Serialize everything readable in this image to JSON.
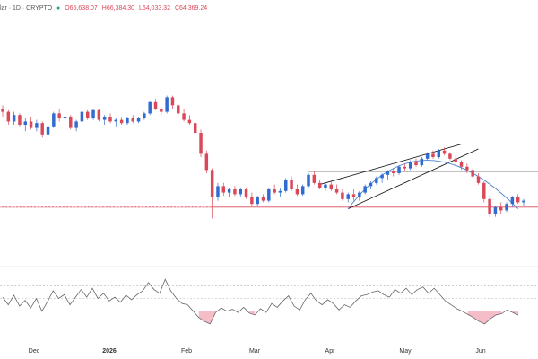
{
  "header": {
    "symbol": "lar · 1D · CRYPTO",
    "open": "O65,638.07",
    "high": "H66,384.30",
    "low": "L64,033.32",
    "close": "C64,369.24"
  },
  "colors": {
    "up": "#2f6bd0",
    "down": "#d9495a",
    "trendline": "#1a1a1a",
    "arc": "#4a7fd0",
    "support": "#d9495a",
    "resistance": "#9a9a9a",
    "rsi": "#666666"
  },
  "chart_data": {
    "type": "candlestick",
    "x_labels": [
      "Dec",
      "2026",
      "Feb",
      "Mar",
      "Apr",
      "May",
      "Jun"
    ],
    "candles": [
      [
        0.8,
        0.82,
        0.75,
        0.78
      ],
      [
        0.78,
        0.79,
        0.7,
        0.72
      ],
      [
        0.72,
        0.78,
        0.7,
        0.76
      ],
      [
        0.76,
        0.77,
        0.69,
        0.7
      ],
      [
        0.7,
        0.74,
        0.66,
        0.72
      ],
      [
        0.72,
        0.75,
        0.67,
        0.68
      ],
      [
        0.68,
        0.73,
        0.66,
        0.71
      ],
      [
        0.71,
        0.72,
        0.62,
        0.64
      ],
      [
        0.64,
        0.7,
        0.63,
        0.69
      ],
      [
        0.69,
        0.78,
        0.68,
        0.77
      ],
      [
        0.77,
        0.8,
        0.72,
        0.74
      ],
      [
        0.74,
        0.76,
        0.7,
        0.75
      ],
      [
        0.75,
        0.76,
        0.67,
        0.68
      ],
      [
        0.68,
        0.73,
        0.66,
        0.72
      ],
      [
        0.72,
        0.79,
        0.71,
        0.78
      ],
      [
        0.78,
        0.79,
        0.73,
        0.74
      ],
      [
        0.74,
        0.8,
        0.73,
        0.79
      ],
      [
        0.79,
        0.8,
        0.72,
        0.73
      ],
      [
        0.73,
        0.76,
        0.7,
        0.75
      ],
      [
        0.75,
        0.77,
        0.71,
        0.72
      ],
      [
        0.72,
        0.74,
        0.69,
        0.73
      ],
      [
        0.73,
        0.75,
        0.7,
        0.71
      ],
      [
        0.71,
        0.75,
        0.7,
        0.74
      ],
      [
        0.74,
        0.76,
        0.71,
        0.72
      ],
      [
        0.72,
        0.75,
        0.71,
        0.74
      ],
      [
        0.74,
        0.78,
        0.73,
        0.77
      ],
      [
        0.77,
        0.85,
        0.76,
        0.84
      ],
      [
        0.84,
        0.86,
        0.79,
        0.8
      ],
      [
        0.8,
        0.81,
        0.76,
        0.78
      ],
      [
        0.78,
        0.88,
        0.77,
        0.87
      ],
      [
        0.87,
        0.88,
        0.8,
        0.82
      ],
      [
        0.82,
        0.83,
        0.76,
        0.77
      ],
      [
        0.77,
        0.8,
        0.72,
        0.73
      ],
      [
        0.73,
        0.76,
        0.7,
        0.71
      ],
      [
        0.71,
        0.72,
        0.64,
        0.65
      ],
      [
        0.65,
        0.67,
        0.5,
        0.52
      ],
      [
        0.52,
        0.54,
        0.4,
        0.42
      ],
      [
        0.42,
        0.43,
        0.12,
        0.25
      ],
      [
        0.25,
        0.34,
        0.23,
        0.32
      ],
      [
        0.32,
        0.34,
        0.26,
        0.28
      ],
      [
        0.28,
        0.31,
        0.25,
        0.3
      ],
      [
        0.3,
        0.32,
        0.26,
        0.27
      ],
      [
        0.27,
        0.31,
        0.25,
        0.3
      ],
      [
        0.3,
        0.31,
        0.24,
        0.25
      ],
      [
        0.25,
        0.28,
        0.2,
        0.21
      ],
      [
        0.21,
        0.26,
        0.2,
        0.25
      ],
      [
        0.25,
        0.27,
        0.22,
        0.23
      ],
      [
        0.23,
        0.31,
        0.22,
        0.3
      ],
      [
        0.3,
        0.33,
        0.27,
        0.28
      ],
      [
        0.28,
        0.31,
        0.25,
        0.29
      ],
      [
        0.29,
        0.37,
        0.28,
        0.36
      ],
      [
        0.36,
        0.38,
        0.29,
        0.3
      ],
      [
        0.3,
        0.33,
        0.26,
        0.27
      ],
      [
        0.27,
        0.33,
        0.26,
        0.32
      ],
      [
        0.32,
        0.4,
        0.31,
        0.39
      ],
      [
        0.39,
        0.41,
        0.33,
        0.34
      ],
      [
        0.34,
        0.36,
        0.3,
        0.31
      ],
      [
        0.31,
        0.34,
        0.29,
        0.33
      ],
      [
        0.33,
        0.35,
        0.29,
        0.3
      ],
      [
        0.3,
        0.33,
        0.27,
        0.28
      ],
      [
        0.28,
        0.3,
        0.23,
        0.24
      ],
      [
        0.24,
        0.28,
        0.22,
        0.27
      ],
      [
        0.27,
        0.3,
        0.23,
        0.25
      ],
      [
        0.25,
        0.29,
        0.23,
        0.28
      ],
      [
        0.28,
        0.33,
        0.27,
        0.32
      ],
      [
        0.32,
        0.35,
        0.3,
        0.34
      ],
      [
        0.34,
        0.38,
        0.33,
        0.37
      ],
      [
        0.37,
        0.4,
        0.34,
        0.39
      ],
      [
        0.39,
        0.42,
        0.36,
        0.41
      ],
      [
        0.41,
        0.43,
        0.38,
        0.4
      ],
      [
        0.4,
        0.45,
        0.39,
        0.44
      ],
      [
        0.44,
        0.46,
        0.41,
        0.43
      ],
      [
        0.43,
        0.48,
        0.42,
        0.47
      ],
      [
        0.47,
        0.49,
        0.44,
        0.45
      ],
      [
        0.45,
        0.5,
        0.44,
        0.49
      ],
      [
        0.49,
        0.53,
        0.48,
        0.52
      ],
      [
        0.52,
        0.54,
        0.49,
        0.5
      ],
      [
        0.5,
        0.55,
        0.49,
        0.54
      ],
      [
        0.54,
        0.56,
        0.51,
        0.52
      ],
      [
        0.52,
        0.53,
        0.48,
        0.49
      ],
      [
        0.49,
        0.51,
        0.45,
        0.47
      ],
      [
        0.47,
        0.48,
        0.42,
        0.44
      ],
      [
        0.44,
        0.46,
        0.4,
        0.42
      ],
      [
        0.42,
        0.43,
        0.37,
        0.38
      ],
      [
        0.38,
        0.4,
        0.33,
        0.34
      ],
      [
        0.34,
        0.35,
        0.22,
        0.24
      ],
      [
        0.24,
        0.26,
        0.13,
        0.15
      ],
      [
        0.15,
        0.2,
        0.13,
        0.19
      ],
      [
        0.19,
        0.22,
        0.15,
        0.17
      ],
      [
        0.17,
        0.22,
        0.16,
        0.21
      ],
      [
        0.21,
        0.26,
        0.19,
        0.25
      ],
      [
        0.25,
        0.27,
        0.21,
        0.22
      ],
      [
        0.22,
        0.24,
        0.2,
        0.23
      ]
    ],
    "rsi": [
      52,
      40,
      55,
      38,
      47,
      35,
      50,
      30,
      45,
      62,
      50,
      56,
      40,
      52,
      64,
      52,
      66,
      50,
      58,
      46,
      52,
      44,
      55,
      48,
      56,
      62,
      75,
      64,
      58,
      80,
      62,
      50,
      42,
      40,
      30,
      20,
      14,
      10,
      28,
      35,
      30,
      33,
      28,
      36,
      27,
      24,
      34,
      28,
      42,
      36,
      46,
      54,
      38,
      32,
      48,
      58,
      46,
      40,
      48,
      42,
      32,
      40,
      36,
      46,
      54,
      56,
      60,
      62,
      56,
      52,
      64,
      58,
      66,
      56,
      64,
      68,
      58,
      66,
      56,
      46,
      40,
      34,
      30,
      25,
      20,
      14,
      10,
      18,
      24,
      26,
      32,
      28,
      24
    ]
  }
}
